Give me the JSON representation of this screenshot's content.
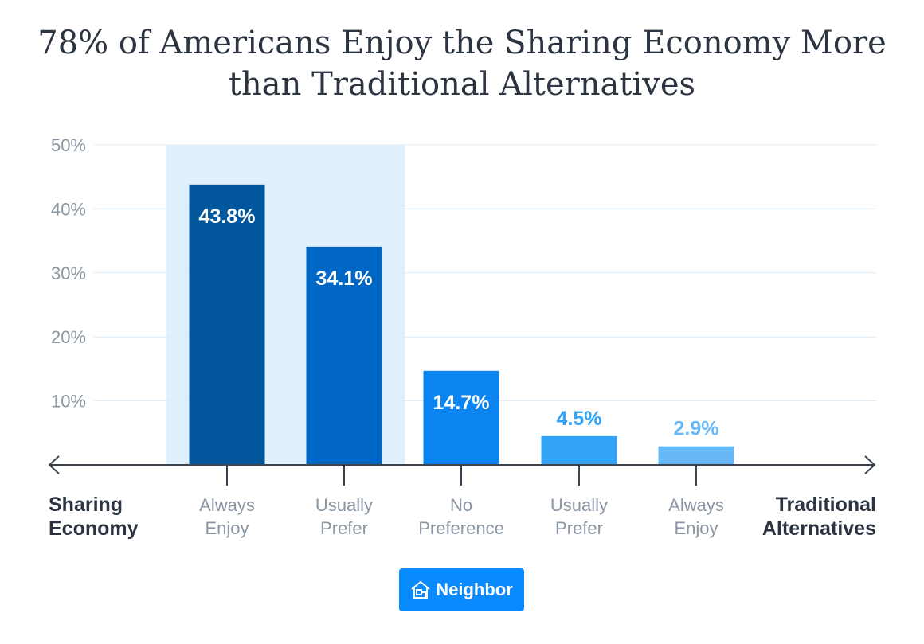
{
  "chart_data": {
    "type": "bar",
    "title": "78% of Americans Enjoy the Sharing Economy More than Traditional Alternatives",
    "categories": [
      [
        "Always",
        "Enjoy"
      ],
      [
        "Usually",
        "Prefer"
      ],
      [
        "No",
        "Preference"
      ],
      [
        "Usually",
        "Prefer"
      ],
      [
        "Always",
        "Enjoy"
      ]
    ],
    "values": [
      43.8,
      34.1,
      14.7,
      4.5,
      2.9
    ],
    "value_labels": [
      "43.8%",
      "34.1%",
      "14.7%",
      "4.5%",
      "2.9%"
    ],
    "colors": [
      "#02569b",
      "#0068c4",
      "#0a84f0",
      "#33a3f7",
      "#66b8f7"
    ],
    "ylim": [
      0,
      50
    ],
    "yticks": [
      "10%",
      "20%",
      "30%",
      "40%",
      "50%"
    ],
    "grid": true,
    "highlight_categories": [
      0,
      1
    ],
    "highlight_color": "#e0f1fd",
    "left_axis_label": [
      "Sharing",
      "Economy"
    ],
    "right_axis_label": [
      "Traditional",
      "Alternatives"
    ]
  },
  "logo": {
    "text": "Neighbor",
    "icon": "house-icon",
    "color": "#0a8aff"
  }
}
